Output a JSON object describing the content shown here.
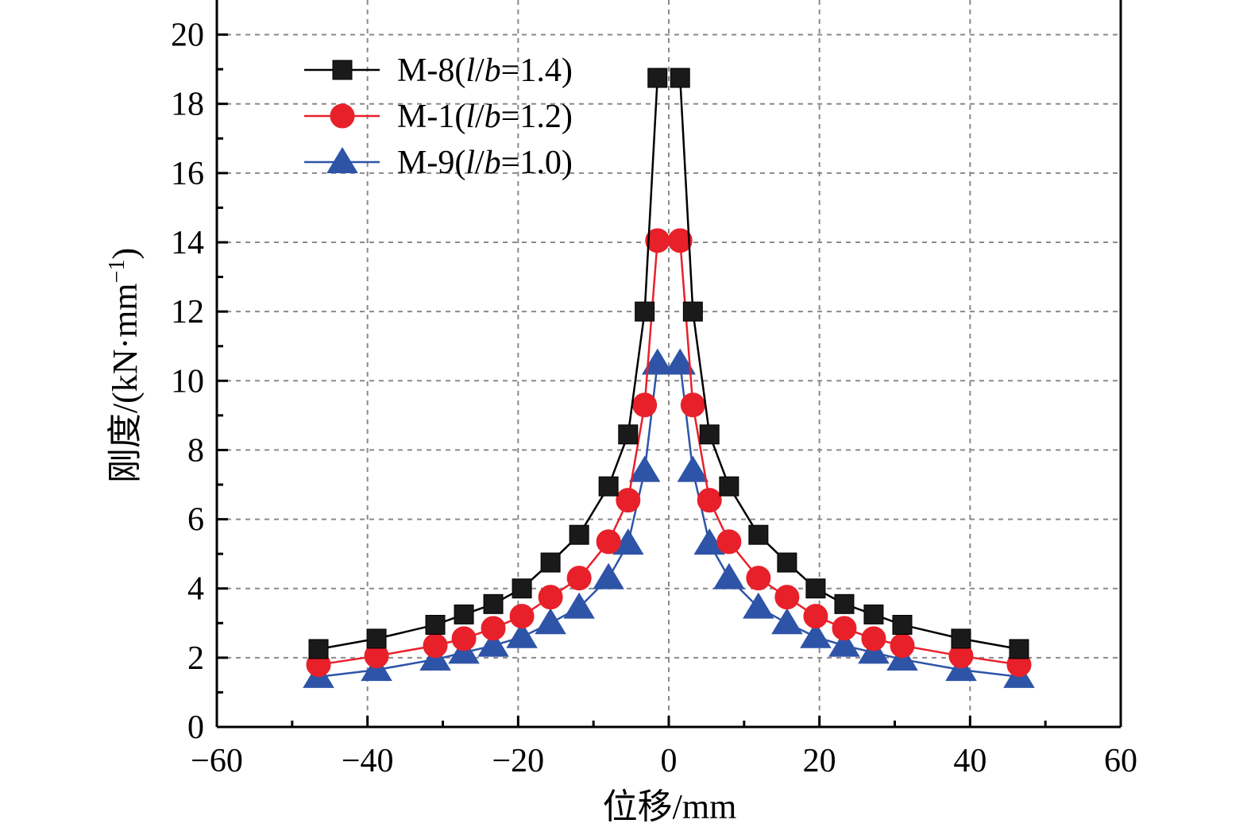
{
  "chart_data": {
    "type": "line",
    "xlabel": "位移/mm",
    "ylabel_main": "刚度/(kN·mm",
    "ylabel_sup": "−1",
    "ylabel_close": ")",
    "xlim": [
      -60,
      60
    ],
    "ylim": [
      0,
      21
    ],
    "xticks": [
      -60,
      -40,
      -20,
      0,
      20,
      40,
      60
    ],
    "xtick_labels": [
      "−60",
      "−40",
      "−20",
      "0",
      "20",
      "40",
      "60"
    ],
    "yticks": [
      0,
      2,
      4,
      6,
      8,
      10,
      12,
      14,
      16,
      18,
      20
    ],
    "ytick_labels": [
      "0",
      "2",
      "4",
      "6",
      "8",
      "10",
      "12",
      "14",
      "16",
      "18",
      "20"
    ],
    "grid": true,
    "legend_position": "top-left",
    "series": [
      {
        "name_prefix": "M-8(",
        "name_l": "l",
        "name_slash": "/",
        "name_b": "b",
        "name_suffix": "=1.4)",
        "color": "#000000",
        "fill": "#1a1a1a",
        "marker": "square",
        "x": [
          -46.5,
          -38.8,
          -31.0,
          -27.2,
          -23.3,
          -19.5,
          -15.7,
          -11.9,
          -8.0,
          -5.4,
          -3.2,
          -1.5,
          1.5,
          3.2,
          5.4,
          8.0,
          11.9,
          15.7,
          19.5,
          23.3,
          27.2,
          31.0,
          38.8,
          46.5
        ],
        "y": [
          2.25,
          2.55,
          2.95,
          3.25,
          3.55,
          4.0,
          4.75,
          5.55,
          6.95,
          8.45,
          12.0,
          18.75,
          18.75,
          12.0,
          8.45,
          6.95,
          5.55,
          4.75,
          4.0,
          3.55,
          3.25,
          2.95,
          2.55,
          2.25
        ]
      },
      {
        "name_prefix": "M-1(",
        "name_l": "l",
        "name_slash": "/",
        "name_b": "b",
        "name_suffix": "=1.2)",
        "color": "#e8202a",
        "fill": "#e8202a",
        "marker": "circle",
        "x": [
          -46.5,
          -38.8,
          -31.0,
          -27.2,
          -23.3,
          -19.5,
          -15.7,
          -11.9,
          -8.0,
          -5.4,
          -3.2,
          -1.5,
          1.5,
          3.2,
          5.4,
          8.0,
          11.9,
          15.7,
          19.5,
          23.3,
          27.2,
          31.0,
          38.8,
          46.5
        ],
        "y": [
          1.8,
          2.05,
          2.35,
          2.55,
          2.85,
          3.2,
          3.75,
          4.3,
          5.35,
          6.55,
          9.3,
          14.05,
          14.05,
          9.3,
          6.55,
          5.35,
          4.3,
          3.75,
          3.2,
          2.85,
          2.55,
          2.35,
          2.05,
          1.8
        ]
      },
      {
        "name_prefix": "M-9(",
        "name_l": "l",
        "name_slash": "/",
        "name_b": "b",
        "name_suffix": "=1.0)",
        "color": "#2e54a8",
        "fill": "#2e54a8",
        "marker": "triangle",
        "x": [
          -46.5,
          -38.8,
          -31.0,
          -27.2,
          -23.3,
          -19.5,
          -15.7,
          -11.9,
          -8.0,
          -5.4,
          -3.2,
          -1.5,
          1.5,
          3.2,
          5.4,
          8.0,
          11.9,
          15.7,
          19.5,
          23.3,
          27.2,
          31.0,
          38.8,
          46.5
        ],
        "y": [
          1.45,
          1.65,
          1.95,
          2.15,
          2.35,
          2.6,
          3.0,
          3.45,
          4.3,
          5.3,
          7.4,
          10.5,
          10.5,
          7.4,
          5.3,
          4.3,
          3.45,
          3.0,
          2.6,
          2.35,
          2.15,
          1.95,
          1.65,
          1.45
        ]
      }
    ]
  }
}
